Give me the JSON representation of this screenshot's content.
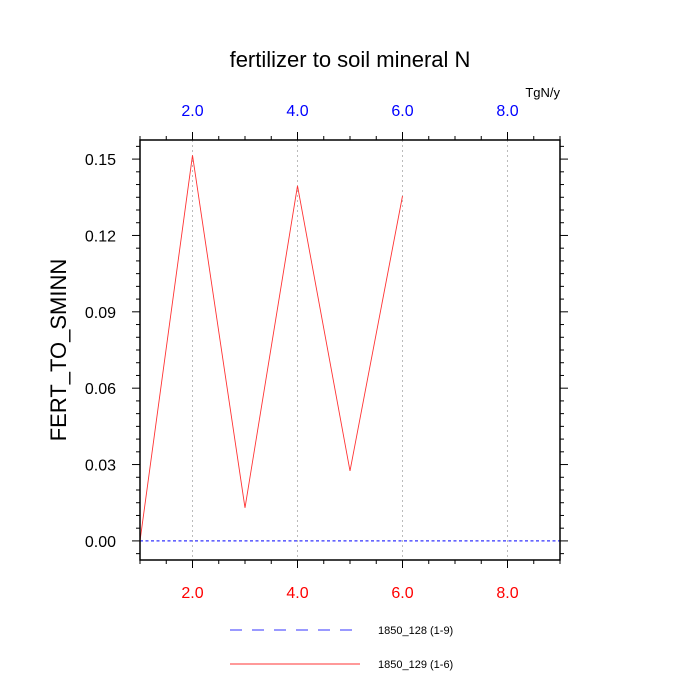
{
  "chart_data": {
    "type": "line",
    "title": "fertilizer to soil mineral N",
    "units": "TgN/y",
    "ylabel": "FERT_TO_SMINN",
    "xlim": [
      1,
      9
    ],
    "ylim": [
      -0.0075,
      0.1575
    ],
    "x_ticks": [
      2,
      4,
      6,
      8
    ],
    "x_tick_labels": [
      "2.0",
      "4.0",
      "6.0",
      "8.0"
    ],
    "y_ticks": [
      0,
      0.03,
      0.06,
      0.09,
      0.12,
      0.15
    ],
    "y_tick_labels": [
      "0.00",
      "0.03",
      "0.06",
      "0.09",
      "0.12",
      "0.15"
    ],
    "grid": "vertical dotted at major x ticks",
    "series": [
      {
        "name": "1850_128 (1-9)",
        "color": "#3333ff",
        "style": "dashed",
        "x": [
          1,
          2,
          3,
          4,
          5,
          6,
          7,
          8,
          9
        ],
        "values": [
          0,
          0,
          0,
          0,
          0,
          0,
          0,
          0,
          0
        ]
      },
      {
        "name": "1850_129 (1-6)",
        "color": "#ff3333",
        "style": "solid",
        "x": [
          1,
          2,
          3,
          4,
          5,
          6
        ],
        "values": [
          0.0,
          0.1515,
          0.013,
          0.1395,
          0.0275,
          0.1355
        ]
      }
    ],
    "legend_position": "bottom-center",
    "bottom_axis_color": "#ff0000",
    "top_axis_color": "#0000ff"
  }
}
